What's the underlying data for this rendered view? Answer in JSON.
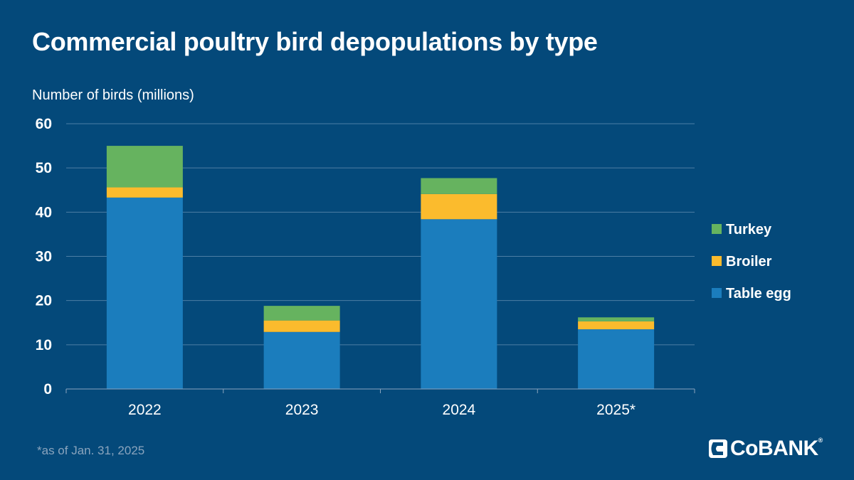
{
  "title": "Commercial poultry bird depopulations by type",
  "footnote": "*as of Jan. 31, 2025",
  "brand": {
    "name": "CoBank",
    "logo_text": "CoBANK",
    "reg_mark": "®"
  },
  "colors": {
    "background": "#04497a",
    "table_egg": "#1b7dbd",
    "broiler": "#fbbb2d",
    "turkey": "#66b35f",
    "grid": "#4d7ea5"
  },
  "chart_data": {
    "type": "bar",
    "stacked": true,
    "title": "Commercial poultry bird depopulations by type",
    "ylabel": "Number of birds (millions)",
    "xlabel": "",
    "categories": [
      "2022",
      "2023",
      "2024",
      "2025*"
    ],
    "ylim": [
      0,
      60
    ],
    "yticks": [
      0,
      10,
      20,
      30,
      40,
      50,
      60
    ],
    "grid": true,
    "legend_position": "right",
    "series": [
      {
        "name": "Table egg",
        "color": "#1b7dbd",
        "values": [
          43.3,
          12.9,
          38.4,
          13.5
        ]
      },
      {
        "name": "Broiler",
        "color": "#fbbb2d",
        "values": [
          2.3,
          2.6,
          5.7,
          1.8
        ]
      },
      {
        "name": "Turkey",
        "color": "#66b35f",
        "values": [
          9.4,
          3.3,
          3.6,
          0.9
        ]
      }
    ],
    "legend_order": [
      "Turkey",
      "Broiler",
      "Table egg"
    ]
  }
}
